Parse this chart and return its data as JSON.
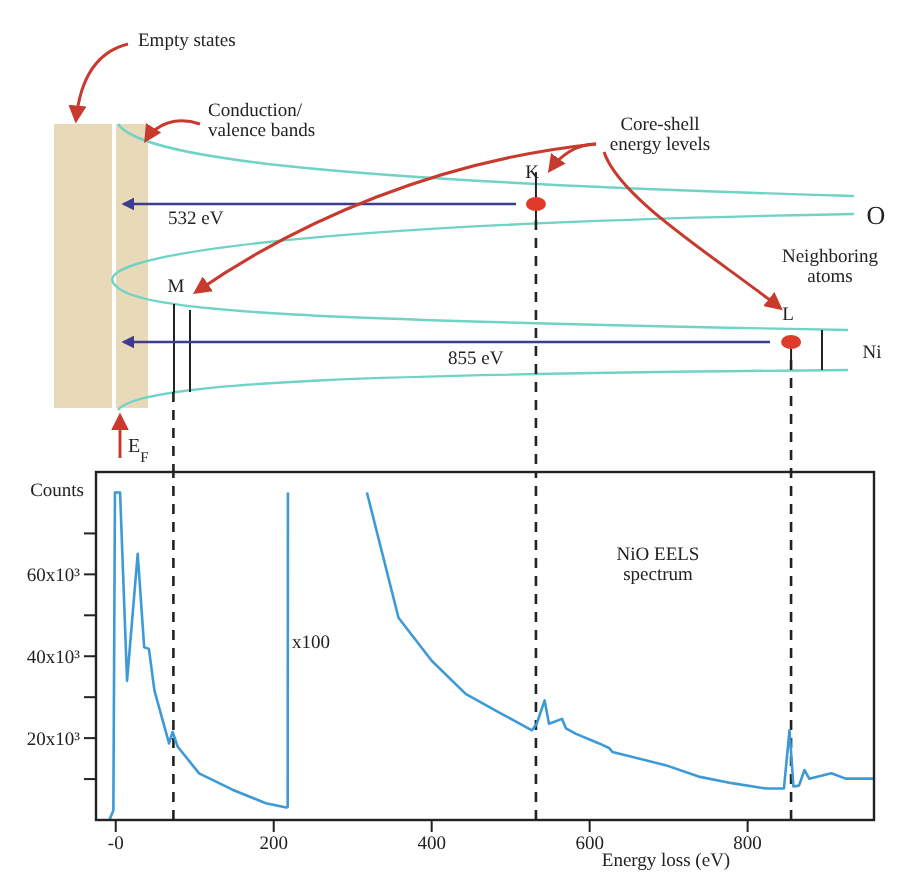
{
  "chart_data": {
    "type": "line",
    "xlabel": "Energy loss (eV)",
    "ylabel": "Counts",
    "xlim": [
      -25,
      960
    ],
    "xticks": [
      {
        "value": 0,
        "label": "-0"
      },
      200,
      400,
      600,
      800
    ],
    "ylim": [
      0,
      85000
    ],
    "yticks": [
      {
        "value": 10000,
        "label": null
      },
      {
        "value": 20000,
        "label": "20x10³"
      },
      {
        "value": 30000,
        "label": null
      },
      {
        "value": 40000,
        "label": "40x10³"
      },
      {
        "value": 50000,
        "label": null
      },
      {
        "value": 60000,
        "label": "60x10³"
      },
      {
        "value": 70000,
        "label": null
      }
    ],
    "series": [
      {
        "color": "#3d9ad6",
        "x": [
          -8,
          -3,
          -1,
          5.5,
          14.3,
          27.8,
          36,
          42,
          49,
          67.5,
          72,
          78.5,
          105.5,
          147.7,
          190,
          217.5
        ],
        "values": [
          0,
          2400,
          80000,
          80000,
          34000,
          65000,
          42200,
          41800,
          31600,
          18700,
          21500,
          17900,
          11400,
          7400,
          4100,
          3000
        ]
      },
      {
        "color": "#3d9ad6",
        "x": [
          217.7,
          218,
          260,
          318,
          358,
          400,
          443,
          485,
          527,
          533,
          543,
          548.5,
          565,
          570,
          582,
          612,
          624.5,
          629,
          696,
          738,
          780,
          823,
          846,
          853,
          858,
          865,
          872,
          878,
          906,
          924,
          960
        ],
        "values": [
          3000,
          80000,
          null,
          80000,
          49400,
          38900,
          30800,
          26300,
          21900,
          23500,
          29200,
          23500,
          24700,
          22400,
          21100,
          18700,
          17600,
          16600,
          13400,
          10600,
          9000,
          7700,
          7700,
          21900,
          8200,
          8400,
          12200,
          10100,
          11400,
          10100,
          10100
        ]
      }
    ],
    "ref_lines": [
      {
        "axis": "x",
        "value": 73,
        "color": "#222222",
        "line_style": "dashed"
      },
      {
        "axis": "x",
        "value": 532,
        "color": "#222222",
        "line_style": "dashed"
      },
      {
        "axis": "x",
        "value": 855,
        "color": "#222222",
        "line_style": "dashed"
      }
    ],
    "annotations": [
      "Empty states",
      "Conduction/\nvalence bands",
      "Core-shell\nenergy levels",
      "K",
      "M",
      "L",
      "O",
      "Neighboring\natoms",
      "Ni",
      "532 eV",
      "855 eV",
      "E$_{F}$",
      "NiO EELS\nspectrum",
      "x100"
    ]
  }
}
